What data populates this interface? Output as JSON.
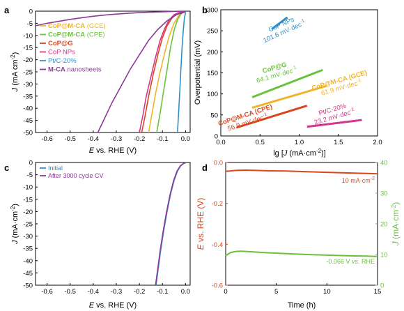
{
  "panels": {
    "a": {
      "label": "a",
      "xlabel_italic": "E",
      "xlabel_rest": " vs. RHE (V)",
      "ylabel_italic": "J",
      "ylabel_rest": " (mA cm",
      "ylabel_sup": "-2",
      "ylabel_close": ")",
      "xticks": [
        "-0.6",
        "-0.5",
        "-0.4",
        "-0.3",
        "-0.2",
        "-0.1",
        "0.0"
      ],
      "yticks": [
        "0",
        "-5",
        "-10",
        "-15",
        "-20",
        "-25",
        "-30",
        "-35",
        "-40",
        "-45",
        "-50"
      ],
      "legend": [
        {
          "bold": "CoP@M-CA",
          "normal": " (GCE)",
          "color": "#f0b428"
        },
        {
          "bold": "CoP@M-CA",
          "normal": " (CPE)",
          "color": "#6cc13c"
        },
        {
          "bold": "CoP@G",
          "normal": "",
          "color": "#d9461e"
        },
        {
          "bold": "",
          "normal": "CoP NPs",
          "color": "#d6358c"
        },
        {
          "bold": "",
          "normal": "Pt/C-20%",
          "color": "#2f8fc8"
        },
        {
          "bold": "M-CA",
          "normal": " nanosheets",
          "color": "#8b3a96"
        }
      ]
    },
    "b": {
      "label": "b",
      "xlabel_pre": "lg [",
      "xlabel_italic": "J",
      "xlabel_rest": " (mA·cm",
      "xlabel_sup": "-2",
      "xlabel_close": ")]",
      "ylabel": "Overpotential (mV)",
      "xticks": [
        "0.0",
        "0.5",
        "1.0",
        "1.5",
        "2.0"
      ],
      "yticks": [
        "0",
        "50",
        "100",
        "150",
        "200",
        "250",
        "300"
      ],
      "annotations": [
        {
          "name": "CoP NPs",
          "slope": "101.6 mV·dec",
          "color": "#2f8fc8"
        },
        {
          "name": "CoP@G",
          "slope": "64.1 mV·dec",
          "color": "#6cc13c"
        },
        {
          "name": "CoP@M-CA (GCE)",
          "slope": "61.9 mV·dec",
          "color": "#f0b428"
        },
        {
          "name": "CoP@M-CA (CPE)",
          "slope": "56.9 mV·dec",
          "color": "#d9461e"
        },
        {
          "name": "Pt/C-20%",
          "slope": "23.2 mV·dec",
          "color": "#d6358c"
        }
      ]
    },
    "c": {
      "label": "c",
      "xlabel_italic": "E",
      "xlabel_rest": " vs. RHE (V)",
      "ylabel_italic": "J",
      "ylabel_rest": " (mA·cm",
      "ylabel_sup": "-2",
      "ylabel_close": ")",
      "xticks": [
        "-0.6",
        "-0.5",
        "-0.4",
        "-0.3",
        "-0.2",
        "-0.1",
        "0.0"
      ],
      "yticks": [
        "0",
        "-5",
        "-10",
        "-15",
        "-20",
        "-25",
        "-30",
        "-35",
        "-40",
        "-45",
        "-50"
      ],
      "legend": [
        {
          "text": "Initial",
          "color": "#2f8fc8"
        },
        {
          "text": "After 3000 cycle CV",
          "color": "#8b3a96"
        }
      ]
    },
    "d": {
      "label": "d",
      "xlabel": "Time (h)",
      "ylabel_left_italic": "E",
      "ylabel_left_rest": " vs. RHE (V)",
      "ylabel_right_italic": "J",
      "ylabel_right_rest": " (mA·cm",
      "ylabel_right_sup": "-2",
      "ylabel_right_close": ")",
      "xticks": [
        "0",
        "5",
        "10",
        "15"
      ],
      "yticks_left": [
        "0.0",
        "-0.2",
        "-0.4",
        "-0.6"
      ],
      "yticks_right": [
        "0",
        "10",
        "20",
        "30",
        "40"
      ],
      "annotation_top": "10 mA·cm",
      "annotation_top_sup": "-2",
      "annotation_bottom_pre": "-0.066 V ",
      "annotation_bottom_italic": "vs.",
      "annotation_bottom_post": " RHE",
      "color_left": "#d9461e",
      "color_right": "#6cc13c"
    }
  },
  "chart_data": [
    {
      "panel": "a",
      "type": "line",
      "xlabel": "E vs. RHE (V)",
      "ylabel": "J (mA cm-2)",
      "xlim": [
        -0.65,
        0.02
      ],
      "ylim": [
        -50,
        0
      ],
      "series": [
        {
          "name": "CoP@M-CA (GCE)",
          "color": "#f0b428",
          "x": [
            -0.16,
            -0.145,
            -0.13,
            -0.11,
            -0.09,
            -0.07,
            -0.05,
            -0.03,
            -0.015,
            0.0
          ],
          "y": [
            -50,
            -42,
            -34,
            -25,
            -17,
            -10,
            -5,
            -2,
            -0.7,
            -0.3
          ]
        },
        {
          "name": "CoP@M-CA (CPE)",
          "color": "#6cc13c",
          "x": [
            -0.125,
            -0.11,
            -0.095,
            -0.08,
            -0.065,
            -0.05,
            -0.035,
            -0.02,
            -0.008,
            0.0
          ],
          "y": [
            -50,
            -42,
            -33,
            -24,
            -15,
            -8,
            -3.5,
            -1.2,
            -0.4,
            -0.2
          ]
        },
        {
          "name": "CoP@G",
          "color": "#d9461e",
          "x": [
            -0.19,
            -0.175,
            -0.16,
            -0.14,
            -0.12,
            -0.1,
            -0.08,
            -0.06,
            -0.04,
            -0.02,
            0.0
          ],
          "y": [
            -50,
            -43,
            -35,
            -26,
            -18,
            -11,
            -6,
            -3,
            -1.2,
            -0.5,
            -0.2
          ]
        },
        {
          "name": "CoP NPs",
          "color": "#d6358c",
          "x": [
            -0.2,
            -0.185,
            -0.17,
            -0.15,
            -0.13,
            -0.11,
            -0.09,
            -0.07,
            -0.05,
            -0.03,
            0.0
          ],
          "y": [
            -50,
            -43,
            -35,
            -27,
            -19,
            -12,
            -7,
            -3.5,
            -1.5,
            -0.6,
            -0.2
          ]
        },
        {
          "name": "Pt/C-20%",
          "color": "#2f8fc8",
          "x": [
            -0.035,
            -0.03,
            -0.025,
            -0.02,
            -0.015,
            -0.01,
            -0.005,
            0.0
          ],
          "y": [
            -50,
            -42,
            -33,
            -24,
            -15,
            -8,
            -3,
            -0.5
          ]
        },
        {
          "name": "M-CA nanosheets",
          "color": "#8b3a96",
          "x": [
            -0.65,
            -0.6,
            -0.55,
            -0.5,
            -0.45,
            -0.4,
            -0.35,
            -0.3,
            -0.25,
            -0.2,
            -0.15,
            -0.1,
            -0.05,
            0.0
          ],
          "y": [
            -6,
            -5,
            -4.2,
            -3.4,
            -2.7,
            -2.1,
            -1.6,
            -1.2,
            -0.9,
            -0.6,
            -0.4,
            -0.25,
            -0.1,
            0.0
          ]
        },
        {
          "name": "M-CA nanosheets (steep)",
          "color": "#8b3a96",
          "x": [
            -0.38,
            -0.35,
            -0.32,
            -0.28,
            -0.24,
            -0.2,
            -0.16,
            -0.12,
            -0.08,
            -0.04,
            0.0
          ],
          "y": [
            -50,
            -44,
            -38,
            -31,
            -24,
            -18,
            -12,
            -7.5,
            -4,
            -1.5,
            -0.2
          ]
        }
      ]
    },
    {
      "panel": "b",
      "type": "scatter",
      "xlabel": "lg [J (mA·cm-2)]",
      "ylabel": "Overpotential (mV)",
      "xlim": [
        0.0,
        2.0
      ],
      "ylim": [
        0,
        300
      ],
      "series": [
        {
          "name": "CoP NPs",
          "color": "#2f8fc8",
          "x": [
            0.65,
            0.85
          ],
          "y": [
            254,
            282
          ]
        },
        {
          "name": "CoP@G",
          "color": "#6cc13c",
          "x": [
            0.4,
            1.3
          ],
          "y": [
            92,
            157
          ]
        },
        {
          "name": "CoP@M-CA (GCE)",
          "color": "#f0b428",
          "x": [
            0.4,
            1.35
          ],
          "y": [
            67,
            119
          ]
        },
        {
          "name": "CoP@M-CA (CPE)",
          "color": "#d9461e",
          "x": [
            0.2,
            1.1
          ],
          "y": [
            20,
            72
          ]
        },
        {
          "name": "Pt/C-20%",
          "color": "#d6358c",
          "x": [
            1.1,
            1.8
          ],
          "y": [
            22,
            38
          ]
        }
      ]
    },
    {
      "panel": "c",
      "type": "line",
      "xlabel": "E vs. RHE (V)",
      "ylabel": "J (mA·cm-2)",
      "xlim": [
        -0.65,
        0.02
      ],
      "ylim": [
        -50,
        0
      ],
      "series": [
        {
          "name": "Initial",
          "color": "#2f8fc8",
          "x": [
            -0.128,
            -0.118,
            -0.108,
            -0.095,
            -0.08,
            -0.065,
            -0.05,
            -0.035,
            -0.02,
            -0.01,
            0.0
          ],
          "y": [
            -50,
            -43,
            -36,
            -28,
            -20,
            -13,
            -7.5,
            -3.5,
            -1.3,
            -0.5,
            -0.1
          ]
        },
        {
          "name": "After 3000 cycle CV",
          "color": "#8b3a96",
          "x": [
            -0.13,
            -0.12,
            -0.11,
            -0.097,
            -0.082,
            -0.067,
            -0.052,
            -0.037,
            -0.022,
            -0.011,
            0.0
          ],
          "y": [
            -50,
            -43,
            -36,
            -28,
            -20,
            -13,
            -7.5,
            -3.5,
            -1.3,
            -0.5,
            -0.1
          ]
        }
      ]
    },
    {
      "panel": "d",
      "type": "line",
      "xlabel": "Time (h)",
      "ylabel": "E vs. RHE (V)",
      "ylabel_right": "J (mA·cm-2)",
      "xlim": [
        0,
        15
      ],
      "ylim": [
        -0.6,
        0.0
      ],
      "ylim_right": [
        0,
        40
      ],
      "series": [
        {
          "name": "10 mA·cm-2",
          "axis": "right",
          "color": "#d9461e",
          "x": [
            0,
            1,
            2,
            3,
            4,
            6,
            8,
            10,
            12,
            14,
            15
          ],
          "y": [
            37.1,
            37.4,
            37.5,
            37.4,
            37.3,
            37.2,
            37.0,
            36.8,
            36.6,
            36.4,
            36.3
          ]
        },
        {
          "name": "-0.066 V vs. RHE",
          "axis": "left",
          "color": "#6cc13c",
          "x": [
            0,
            0.5,
            1,
            1.5,
            2,
            3,
            4,
            6,
            8,
            10,
            12,
            14,
            15
          ],
          "y": [
            -0.455,
            -0.44,
            -0.435,
            -0.434,
            -0.435,
            -0.438,
            -0.441,
            -0.446,
            -0.45,
            -0.453,
            -0.456,
            -0.458,
            -0.46
          ]
        }
      ]
    }
  ]
}
